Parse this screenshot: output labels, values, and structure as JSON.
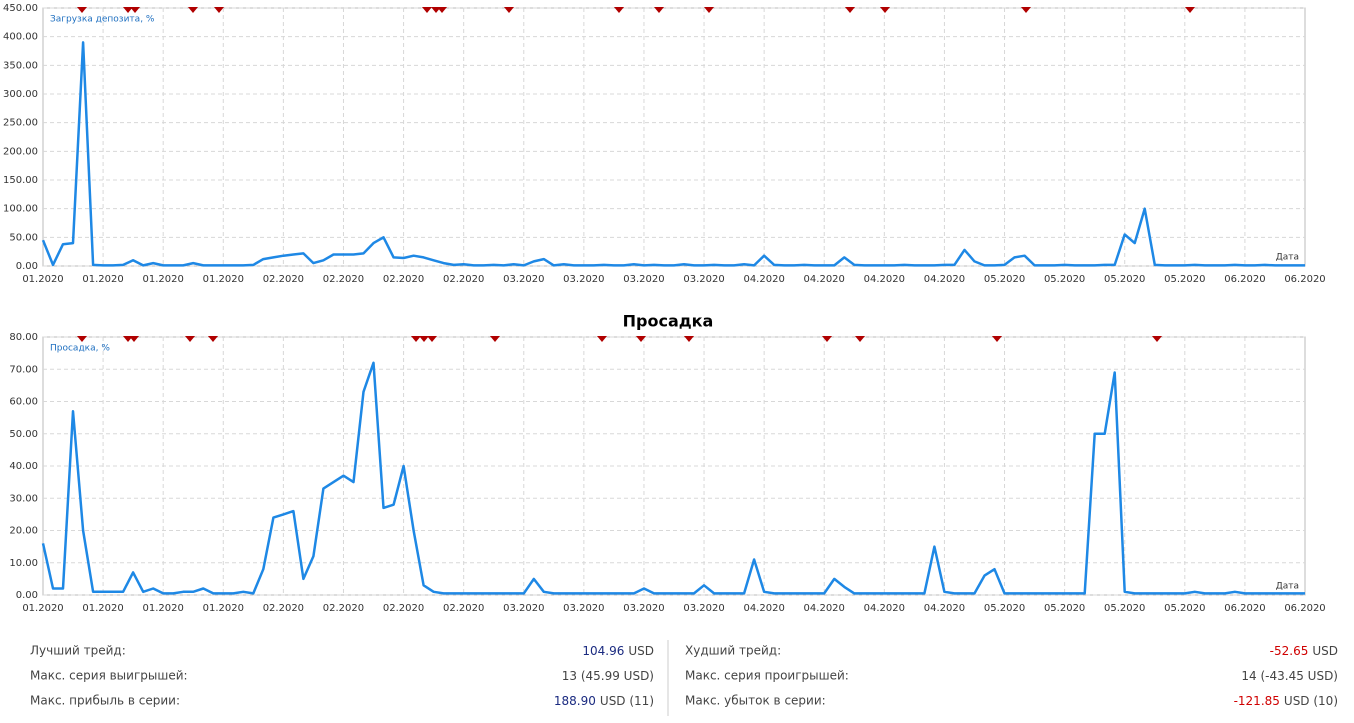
{
  "chart_data": [
    {
      "type": "line",
      "label": "Загрузка депозита, %",
      "x_label": "Дата",
      "xtick_labels": [
        "01.2020",
        "01.2020",
        "01.2020",
        "01.2020",
        "02.2020",
        "02.2020",
        "02.2020",
        "02.2020",
        "03.2020",
        "03.2020",
        "03.2020",
        "03.2020",
        "04.2020",
        "04.2020",
        "04.2020",
        "04.2020",
        "05.2020",
        "05.2020",
        "05.2020",
        "05.2020",
        "06.2020",
        "06.2020"
      ],
      "ylim": [
        0,
        450
      ],
      "yticks": [
        {
          "value": 0,
          "label": "0.00"
        },
        {
          "value": 50,
          "label": "50.00"
        },
        {
          "value": 100,
          "label": "100.00"
        },
        {
          "value": 150,
          "label": "150.00"
        },
        {
          "value": 200,
          "label": "200.00"
        },
        {
          "value": 250,
          "label": "250.00"
        },
        {
          "value": 300,
          "label": "300.00"
        },
        {
          "value": 350,
          "label": "350.00"
        },
        {
          "value": 400,
          "label": "400.00"
        },
        {
          "value": 450,
          "label": "450.00"
        }
      ],
      "grid": true,
      "series": [
        {
          "color": "#1e88e5",
          "values": [
            45,
            2,
            38,
            40,
            390,
            2,
            1,
            1,
            2,
            10,
            1,
            5,
            1,
            1,
            1,
            5,
            1,
            1,
            1,
            1,
            1,
            2,
            12,
            15,
            18,
            20,
            22,
            5,
            10,
            20,
            20,
            20,
            22,
            40,
            50,
            15,
            14,
            18,
            15,
            10,
            5,
            2,
            3,
            1,
            1,
            2,
            1,
            3,
            1,
            8,
            12,
            1,
            3,
            1,
            1,
            1,
            2,
            1,
            1,
            3,
            1,
            2,
            1,
            1,
            3,
            1,
            1,
            2,
            1,
            1,
            3,
            1,
            18,
            2,
            1,
            1,
            2,
            1,
            1,
            1,
            15,
            2,
            1,
            1,
            1,
            1,
            2,
            1,
            1,
            1,
            2,
            2,
            28,
            8,
            1,
            1,
            2,
            15,
            18,
            1,
            1,
            1,
            2,
            1,
            1,
            1,
            2,
            2,
            55,
            40,
            100,
            2,
            1,
            1,
            1,
            2,
            1,
            1,
            1,
            2,
            1,
            1,
            2,
            1,
            1,
            1,
            1
          ]
        }
      ]
    },
    {
      "type": "line",
      "title": "Просадка",
      "label": "Просадка, %",
      "x_label": "Дата",
      "xtick_labels": [
        "01.2020",
        "01.2020",
        "01.2020",
        "01.2020",
        "02.2020",
        "02.2020",
        "02.2020",
        "02.2020",
        "03.2020",
        "03.2020",
        "03.2020",
        "03.2020",
        "04.2020",
        "04.2020",
        "04.2020",
        "04.2020",
        "05.2020",
        "05.2020",
        "05.2020",
        "05.2020",
        "06.2020",
        "06.2020"
      ],
      "ylim": [
        0,
        80
      ],
      "yticks": [
        {
          "value": 0,
          "label": "0.00"
        },
        {
          "value": 10,
          "label": "10.00"
        },
        {
          "value": 20,
          "label": "20.00"
        },
        {
          "value": 30,
          "label": "30.00"
        },
        {
          "value": 40,
          "label": "40.00"
        },
        {
          "value": 50,
          "label": "50.00"
        },
        {
          "value": 60,
          "label": "60.00"
        },
        {
          "value": 70,
          "label": "70.00"
        },
        {
          "value": 80,
          "label": "80.00"
        }
      ],
      "grid": true,
      "series": [
        {
          "color": "#1e88e5",
          "values": [
            16,
            2,
            2,
            57,
            20,
            1,
            1,
            1,
            1,
            7,
            1,
            2,
            0.5,
            0.5,
            1,
            1,
            2,
            0.5,
            0.5,
            0.5,
            1,
            0.5,
            8,
            24,
            25,
            26,
            5,
            12,
            33,
            35,
            37,
            35,
            63,
            72,
            27,
            28,
            40,
            20,
            3,
            1,
            0.5,
            0.5,
            0.5,
            0.5,
            0.5,
            0.5,
            0.5,
            0.5,
            0.5,
            5,
            1,
            0.5,
            0.5,
            0.5,
            0.5,
            0.5,
            0.5,
            0.5,
            0.5,
            0.5,
            2,
            0.5,
            0.5,
            0.5,
            0.5,
            0.5,
            3,
            0.5,
            0.5,
            0.5,
            0.5,
            11,
            1,
            0.5,
            0.5,
            0.5,
            0.5,
            0.5,
            0.5,
            5,
            2.5,
            0.5,
            0.5,
            0.5,
            0.5,
            0.5,
            0.5,
            0.5,
            0.5,
            15,
            1,
            0.5,
            0.5,
            0.5,
            6,
            8,
            0.5,
            0.5,
            0.5,
            0.5,
            0.5,
            0.5,
            0.5,
            0.5,
            0.5,
            50,
            50,
            69,
            1,
            0.5,
            0.5,
            0.5,
            0.5,
            0.5,
            0.5,
            1,
            0.5,
            0.5,
            0.5,
            1,
            0.5,
            0.5,
            0.5,
            0.5,
            0.5,
            0.5,
            0.5
          ]
        }
      ]
    }
  ],
  "stats": {
    "left": [
      {
        "label": "Лучший трейд:",
        "value": "104.96",
        "unit": "USD"
      },
      {
        "label": "Макс. серия выигрышей:",
        "value": "13 (45.99 USD)"
      },
      {
        "label": "Макс. прибыль в серии:",
        "value": "188.90",
        "unit": "USD (11)"
      }
    ],
    "right": [
      {
        "label": "Худший трейд:",
        "value": "-52.65",
        "unit": "USD"
      },
      {
        "label": "Макс. серия проигрышей:",
        "value": "14 (-43.45 USD)"
      },
      {
        "label": "Макс. убыток в серии:",
        "value": "-121.85",
        "unit": "USD (10)"
      }
    ]
  }
}
